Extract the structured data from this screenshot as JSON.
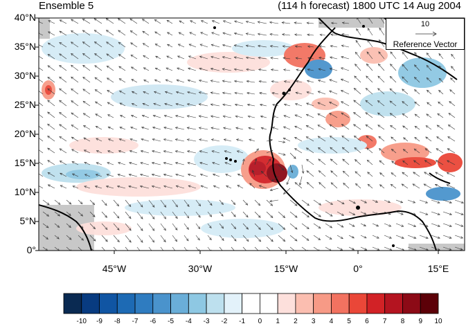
{
  "title_left": "Ensemble 5",
  "title_right": "(114 h forecast) 1800 UTC 14 Aug 2004",
  "y_axis_labels": [
    "40°N",
    "35°N",
    "30°N",
    "25°N",
    "20°N",
    "15°N",
    "10°N",
    "5°N",
    "0°"
  ],
  "x_axis_labels": [
    "45°W",
    "30°W",
    "15°W",
    "0°",
    "15°E"
  ],
  "reference_vector": {
    "value": "10",
    "label": "Reference Vector"
  },
  "colorbar": {
    "labels": [
      "-10",
      "-9",
      "-8",
      "-7",
      "-6",
      "-5",
      "-4",
      "-3",
      "-2",
      "-1",
      "0",
      "1",
      "2",
      "3",
      "4",
      "5",
      "6",
      "7",
      "8",
      "9",
      "10"
    ],
    "colors": [
      "#0a2a52",
      "#083b80",
      "#1055a3",
      "#1d6ab4",
      "#2f7cc0",
      "#4a93cc",
      "#6aaed8",
      "#8ec8e3",
      "#bde0ee",
      "#e3f2fa",
      "#ffffff",
      "#ffffff",
      "#fde0dc",
      "#fbbeb0",
      "#f79a86",
      "#f27260",
      "#ea4738",
      "#d22226",
      "#b41420",
      "#8c0a16",
      "#5c0008"
    ]
  },
  "colors": {
    "land_outline": "#000000",
    "ocean_no_data": "#c8c8c8",
    "vector": "#333333"
  }
}
